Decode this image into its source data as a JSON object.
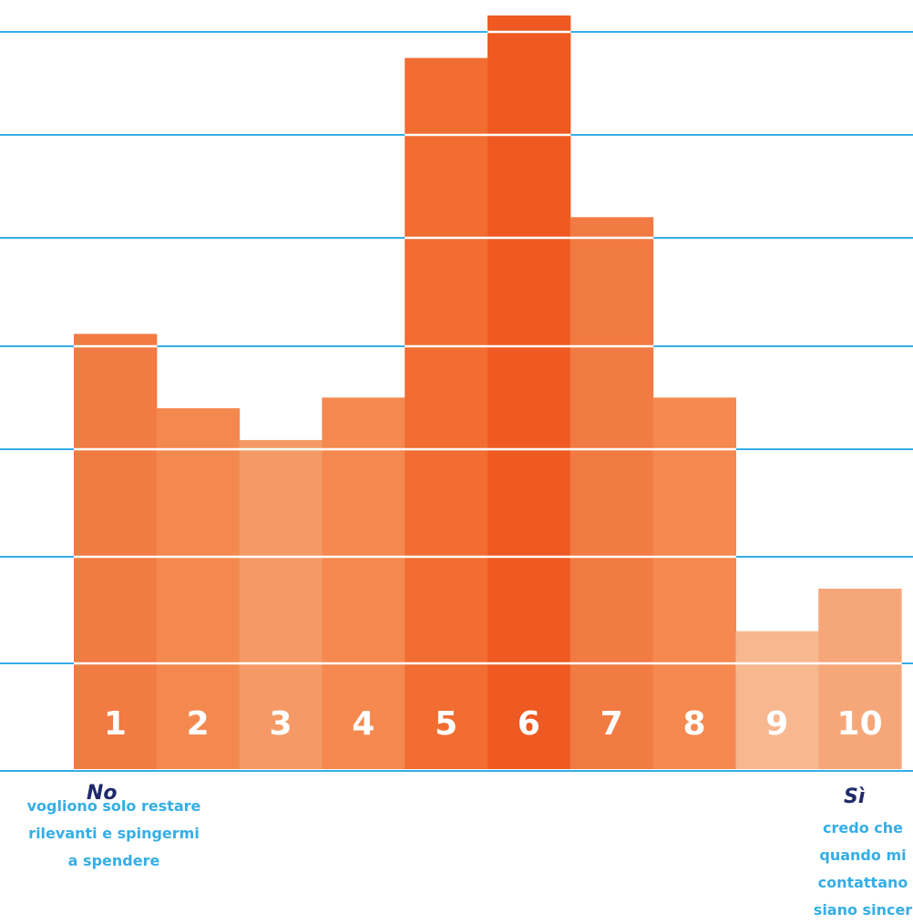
{
  "chart_data": {
    "type": "bar",
    "categories": [
      "1",
      "2",
      "3",
      "4",
      "5",
      "6",
      "7",
      "8",
      "9",
      "10"
    ],
    "values": [
      41,
      34,
      31,
      35,
      67,
      71,
      52,
      35,
      13,
      17
    ],
    "ylim": [
      0,
      71
    ],
    "title": "",
    "xlabel": "",
    "ylabel": "",
    "grid": true,
    "bar_colors": [
      "#f27a43",
      "#f4894f",
      "#f59a66",
      "#f5894f",
      "#f16d31",
      "#ee5a22",
      "#f27a43",
      "#f5894f",
      "#f7b78f",
      "#f6a77a"
    ],
    "grid_color": "#35aee6"
  },
  "scale_ends": {
    "left": {
      "title": "No",
      "desc": "vogliono solo restare\nrilevanti e spingermi\na spendere"
    },
    "right": {
      "title": "Sì",
      "desc": "credo che\nquando mi\ncontattano\nsiano sincer"
    }
  }
}
